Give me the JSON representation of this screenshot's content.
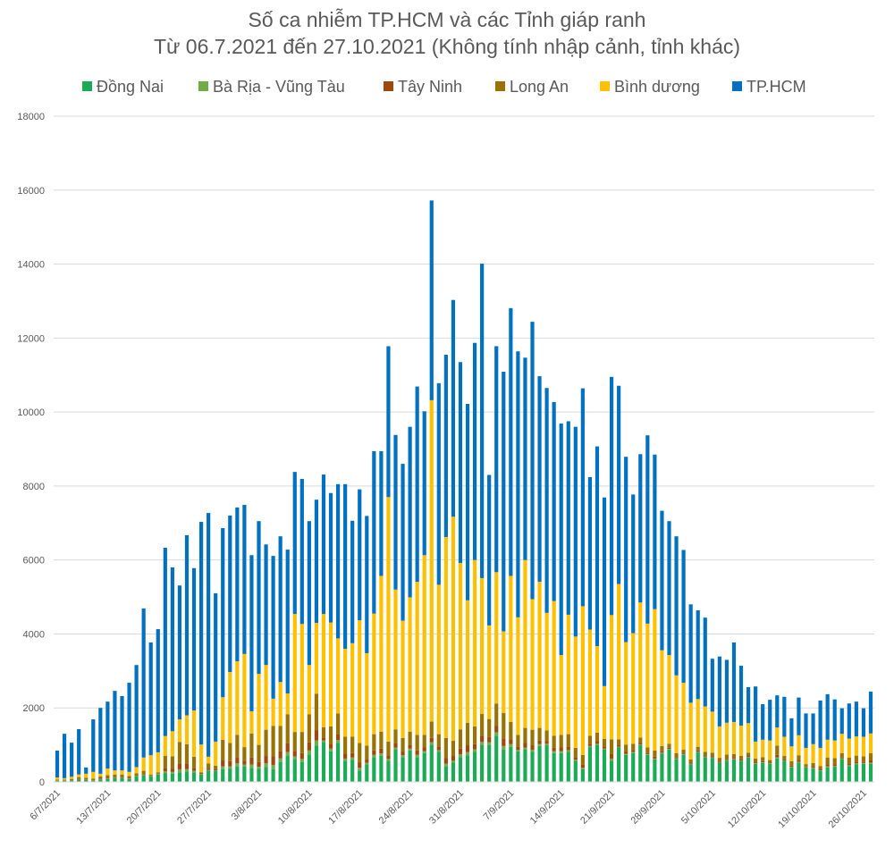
{
  "chart_data": {
    "type": "bar",
    "stacked": true,
    "title": "Số ca nhiễm TP.HCM và các Tỉnh giáp ranh",
    "subtitle": "Từ 06.7.2021 đến 27.10.2021 (Không tính nhập cảnh, tỉnh khác)",
    "xlabel": "",
    "ylabel": "",
    "ylim": [
      0,
      18000
    ],
    "y_ticks": [
      "0",
      "2000",
      "4000",
      "6000",
      "8000",
      "10000",
      "12000",
      "14000",
      "16000",
      "18000"
    ],
    "x_start_date": "2021-07-06",
    "x_tick_every": 7,
    "x_tick_labels": [
      "6/7/2021",
      "13/7/2021",
      "20/7/2021",
      "27/7/2021",
      "3/8/2021",
      "10/8/2021",
      "17/8/2021",
      "24/8/2021",
      "31/8/2021",
      "7/9/2021",
      "14/9/2021",
      "21/9/2021",
      "28/9/2021",
      "5/10/2021",
      "12/10/2021",
      "19/10/2021",
      "26/10/2021"
    ],
    "grid": true,
    "legend_position": "top",
    "series": [
      {
        "name": "Đồng Nai",
        "color": "#1aab54",
        "values": [
          30,
          30,
          40,
          50,
          50,
          40,
          60,
          80,
          100,
          110,
          80,
          150,
          180,
          150,
          200,
          240,
          220,
          260,
          280,
          260,
          200,
          300,
          300,
          340,
          350,
          420,
          420,
          380,
          350,
          400,
          340,
          540,
          700,
          620,
          540,
          740,
          980,
          1080,
          830,
          1050,
          570,
          600,
          310,
          470,
          670,
          700,
          570,
          880,
          670,
          850,
          670,
          780,
          1010,
          810,
          410,
          520,
          670,
          720,
          810,
          1000,
          1000,
          1250,
          870,
          950,
          830,
          870,
          810,
          970,
          990,
          780,
          780,
          810,
          570,
          340,
          940,
          1000,
          870,
          570,
          930,
          730,
          780,
          990,
          730,
          610,
          770,
          870,
          620,
          730,
          480,
          810,
          670,
          650,
          510,
          570,
          610,
          570,
          660,
          490,
          510,
          490,
          630,
          570,
          390,
          520,
          390,
          360,
          300,
          390,
          410,
          620,
          430,
          480,
          490,
          490
        ]
      },
      {
        "name": "Bà Rịa - Vũng Tàu",
        "color": "#70ad47",
        "values": [
          10,
          10,
          10,
          10,
          10,
          10,
          10,
          10,
          10,
          10,
          10,
          10,
          10,
          10,
          10,
          50,
          50,
          80,
          70,
          40,
          10,
          20,
          10,
          80,
          70,
          80,
          50,
          90,
          60,
          100,
          120,
          100,
          110,
          70,
          80,
          110,
          140,
          40,
          70,
          80,
          60,
          60,
          70,
          50,
          60,
          70,
          50,
          50,
          50,
          50,
          60,
          50,
          60,
          50,
          80,
          60,
          80,
          90,
          70,
          80,
          70,
          90,
          100,
          70,
          40,
          60,
          60,
          50,
          40,
          50,
          50,
          50,
          30,
          40,
          30,
          30,
          30,
          60,
          20,
          30,
          30,
          20,
          20,
          20,
          20,
          20,
          20,
          10,
          10,
          10,
          10,
          10,
          10,
          20,
          10,
          10,
          10,
          10,
          20,
          10,
          30,
          10,
          20,
          20,
          10,
          20,
          10,
          30,
          20,
          20,
          20,
          20,
          20,
          30
        ]
      },
      {
        "name": "Tây Ninh",
        "color": "#9e480e",
        "values": [
          10,
          10,
          10,
          20,
          10,
          10,
          20,
          20,
          20,
          20,
          20,
          20,
          20,
          10,
          10,
          90,
          90,
          160,
          150,
          80,
          20,
          40,
          30,
          160,
          140,
          170,
          100,
          190,
          130,
          200,
          230,
          190,
          230,
          150,
          160,
          220,
          280,
          80,
          130,
          160,
          130,
          120,
          150,
          100,
          120,
          130,
          100,
          110,
          100,
          100,
          120,
          100,
          120,
          100,
          160,
          120,
          150,
          180,
          140,
          170,
          140,
          170,
          200,
          130,
          90,
          120,
          120,
          100,
          80,
          90,
          100,
          100,
          70,
          80,
          60,
          70,
          60,
          120,
          40,
          60,
          50,
          40,
          40,
          50,
          40,
          30,
          30,
          30,
          30,
          30,
          30,
          30,
          30,
          30,
          30,
          30,
          30,
          30,
          30,
          20,
          70,
          30,
          30,
          40,
          20,
          30,
          30,
          50,
          50,
          30,
          50,
          50,
          40,
          60
        ]
      },
      {
        "name": "Long An",
        "color": "#997300",
        "values": [
          10,
          10,
          20,
          50,
          40,
          30,
          60,
          70,
          70,
          60,
          50,
          50,
          90,
          30,
          40,
          320,
          330,
          580,
          520,
          300,
          30,
          140,
          100,
          560,
          490,
          600,
          370,
          650,
          460,
          710,
          820,
          680,
          790,
          510,
          570,
          760,
          980,
          280,
          470,
          560,
          460,
          440,
          520,
          360,
          440,
          460,
          370,
          380,
          370,
          360,
          420,
          340,
          440,
          330,
          540,
          410,
          520,
          610,
          480,
          590,
          490,
          610,
          690,
          470,
          310,
          410,
          420,
          340,
          280,
          330,
          340,
          330,
          250,
          270,
          220,
          230,
          200,
          400,
          160,
          190,
          170,
          150,
          140,
          170,
          140,
          110,
          110,
          100,
          90,
          100,
          100,
          100,
          100,
          120,
          100,
          90,
          90,
          100,
          110,
          70,
          250,
          90,
          120,
          140,
          60,
          100,
          90,
          190,
          160,
          110,
          160,
          160,
          140,
          200
        ]
      },
      {
        "name": "Bình dương",
        "color": "#ffc000",
        "values": [
          60,
          40,
          60,
          70,
          110,
          180,
          70,
          180,
          110,
          110,
          110,
          170,
          360,
          520,
          540,
          540,
          680,
          610,
          780,
          1250,
          750,
          180,
          650,
          1150,
          1920,
          1990,
          2520,
          600,
          1920,
          1750,
          740,
          1190,
          560,
          3190,
          2920,
          1330,
          1920,
          3060,
          2810,
          2030,
          2380,
          2530,
          3320,
          2500,
          3260,
          4210,
          6610,
          3780,
          3170,
          3630,
          4140,
          4860,
          8690,
          4040,
          5430,
          6060,
          4500,
          3310,
          4500,
          3670,
          2530,
          3550,
          2210,
          3950,
          3180,
          4540,
          3530,
          3950,
          3180,
          3640,
          2160,
          3230,
          3010,
          4020,
          2870,
          2340,
          1430,
          3360,
          4200,
          2770,
          2990,
          3650,
          3350,
          3820,
          2590,
          2400,
          2100,
          1810,
          1530,
          1290,
          1230,
          1110,
          850,
          860,
          870,
          820,
          800,
          460,
          470,
          530,
          490,
          520,
          400,
          540,
          440,
          510,
          490,
          480,
          480,
          520,
          510,
          520,
          530,
          530
        ]
      },
      {
        "name": "TP.HCM",
        "color": "#0070c0",
        "values": [
          725,
          1200,
          920,
          1225,
          170,
          1420,
          1780,
          1810,
          2150,
          2010,
          2410,
          2760,
          4030,
          3050,
          3330,
          5090,
          4430,
          3620,
          4870,
          3850,
          6020,
          6590,
          4010,
          4570,
          4230,
          4160,
          4030,
          4220,
          4130,
          3260,
          3860,
          3940,
          3890,
          3840,
          3920,
          3890,
          3330,
          3770,
          3500,
          4170,
          4450,
          3310,
          3540,
          3710,
          4390,
          3370,
          4080,
          4180,
          4240,
          4610,
          5280,
          3890,
          5400,
          5450,
          4930,
          5860,
          5430,
          5310,
          5870,
          8500,
          4070,
          6110,
          7020,
          7240,
          7190,
          5470,
          7500,
          5560,
          6080,
          5380,
          6260,
          5230,
          5670,
          5890,
          4120,
          5400,
          5100,
          6440,
          5360,
          5010,
          3750,
          4010,
          5090,
          4180,
          3770,
          3620,
          3760,
          3590,
          2660,
          2400,
          2400,
          1430,
          1890,
          1700,
          2150,
          1620,
          970,
          1490,
          960,
          1100,
          870,
          1080,
          760,
          1020,
          930,
          830,
          1280,
          1230,
          1110,
          690,
          950,
          940,
          770,
          1130
        ]
      }
    ]
  }
}
